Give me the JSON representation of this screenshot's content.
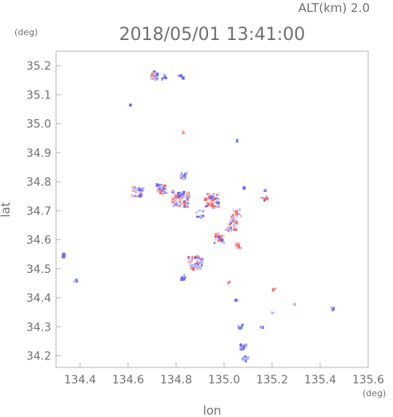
{
  "header": {
    "alt_label": "ALT(km) 2.0",
    "timestamp": "2018/05/01 13:41:00"
  },
  "chart_data": {
    "type": "scatter",
    "title": "2018/05/01 13:41:00",
    "subtitle": "ALT(km) 2.0",
    "xlabel": "lon",
    "ylabel": "lat",
    "x_unit": "(deg)",
    "y_unit": "(deg)",
    "xlim": [
      134.3,
      135.6
    ],
    "ylim": [
      34.16,
      35.25
    ],
    "xticks": [
      134.4,
      134.6,
      134.8,
      135.0,
      135.2,
      135.4,
      135.6
    ],
    "xtick_labels": [
      "134.4",
      "134.6",
      "134.8",
      "135.0",
      "135.2",
      "135.4",
      "135.6"
    ],
    "yticks": [
      34.2,
      34.3,
      34.4,
      34.5,
      34.6,
      34.7,
      34.8,
      34.9,
      35.0,
      35.1,
      35.2
    ],
    "ytick_labels": [
      "34.2",
      "34.3",
      "34.4",
      "34.5",
      "34.6",
      "34.7",
      "34.8",
      "34.9",
      "35.0",
      "35.1",
      "35.2"
    ],
    "grid": false,
    "colors": {
      "positive": "#f26a6a",
      "negative": "#6c6cf0",
      "light_positive": "#f7b8b8",
      "light_negative": "#b9b9f5"
    },
    "clusters": [
      {
        "lon": 134.71,
        "lat": 35.165,
        "spread": 0.018,
        "n": 28,
        "polarity": "mixed"
      },
      {
        "lon": 134.75,
        "lat": 35.16,
        "spread": 0.01,
        "n": 6,
        "polarity": "neg"
      },
      {
        "lon": 134.82,
        "lat": 35.162,
        "spread": 0.01,
        "n": 4,
        "polarity": "neg"
      },
      {
        "lon": 134.61,
        "lat": 35.065,
        "spread": 0.005,
        "n": 2,
        "polarity": "neg"
      },
      {
        "lon": 134.83,
        "lat": 34.97,
        "spread": 0.005,
        "n": 2,
        "polarity": "pos"
      },
      {
        "lon": 135.05,
        "lat": 34.94,
        "spread": 0.005,
        "n": 2,
        "polarity": "neg"
      },
      {
        "lon": 134.64,
        "lat": 34.765,
        "spread": 0.022,
        "n": 30,
        "polarity": "mixed"
      },
      {
        "lon": 134.74,
        "lat": 34.775,
        "spread": 0.022,
        "n": 28,
        "polarity": "mixed"
      },
      {
        "lon": 134.82,
        "lat": 34.74,
        "spread": 0.035,
        "n": 70,
        "polarity": "mixed"
      },
      {
        "lon": 134.83,
        "lat": 34.82,
        "spread": 0.012,
        "n": 12,
        "polarity": "mixed"
      },
      {
        "lon": 134.95,
        "lat": 34.735,
        "spread": 0.03,
        "n": 45,
        "polarity": "mixed"
      },
      {
        "lon": 134.9,
        "lat": 34.69,
        "spread": 0.015,
        "n": 12,
        "polarity": "neg"
      },
      {
        "lon": 135.05,
        "lat": 34.69,
        "spread": 0.02,
        "n": 18,
        "polarity": "mixed"
      },
      {
        "lon": 135.03,
        "lat": 34.65,
        "spread": 0.025,
        "n": 30,
        "polarity": "mixed"
      },
      {
        "lon": 134.98,
        "lat": 34.605,
        "spread": 0.02,
        "n": 22,
        "polarity": "mixed"
      },
      {
        "lon": 135.06,
        "lat": 34.58,
        "spread": 0.012,
        "n": 8,
        "polarity": "pos"
      },
      {
        "lon": 134.88,
        "lat": 34.52,
        "spread": 0.03,
        "n": 45,
        "polarity": "mixed"
      },
      {
        "lon": 134.83,
        "lat": 34.47,
        "spread": 0.012,
        "n": 6,
        "polarity": "neg"
      },
      {
        "lon": 135.17,
        "lat": 34.745,
        "spread": 0.012,
        "n": 8,
        "polarity": "mixed"
      },
      {
        "lon": 135.17,
        "lat": 34.77,
        "spread": 0.006,
        "n": 3,
        "polarity": "neg"
      },
      {
        "lon": 134.33,
        "lat": 34.545,
        "spread": 0.006,
        "n": 4,
        "polarity": "neg"
      },
      {
        "lon": 134.38,
        "lat": 34.46,
        "spread": 0.006,
        "n": 5,
        "polarity": "neg"
      },
      {
        "lon": 135.02,
        "lat": 34.45,
        "spread": 0.006,
        "n": 3,
        "polarity": "pos"
      },
      {
        "lon": 135.05,
        "lat": 34.39,
        "spread": 0.006,
        "n": 3,
        "polarity": "neg"
      },
      {
        "lon": 135.07,
        "lat": 34.3,
        "spread": 0.01,
        "n": 6,
        "polarity": "neg"
      },
      {
        "lon": 135.08,
        "lat": 34.23,
        "spread": 0.012,
        "n": 14,
        "polarity": "neg"
      },
      {
        "lon": 135.09,
        "lat": 34.19,
        "spread": 0.01,
        "n": 8,
        "polarity": "neg"
      },
      {
        "lon": 135.21,
        "lat": 34.43,
        "spread": 0.006,
        "n": 4,
        "polarity": "mixed"
      },
      {
        "lon": 135.16,
        "lat": 34.3,
        "spread": 0.005,
        "n": 3,
        "polarity": "neg"
      },
      {
        "lon": 135.2,
        "lat": 34.35,
        "spread": 0.004,
        "n": 2,
        "polarity": "neg"
      },
      {
        "lon": 135.45,
        "lat": 34.36,
        "spread": 0.008,
        "n": 6,
        "polarity": "neg"
      },
      {
        "lon": 135.08,
        "lat": 34.78,
        "spread": 0.004,
        "n": 2,
        "polarity": "neg"
      },
      {
        "lon": 135.29,
        "lat": 34.38,
        "spread": 0.004,
        "n": 2,
        "polarity": "neg"
      }
    ]
  }
}
